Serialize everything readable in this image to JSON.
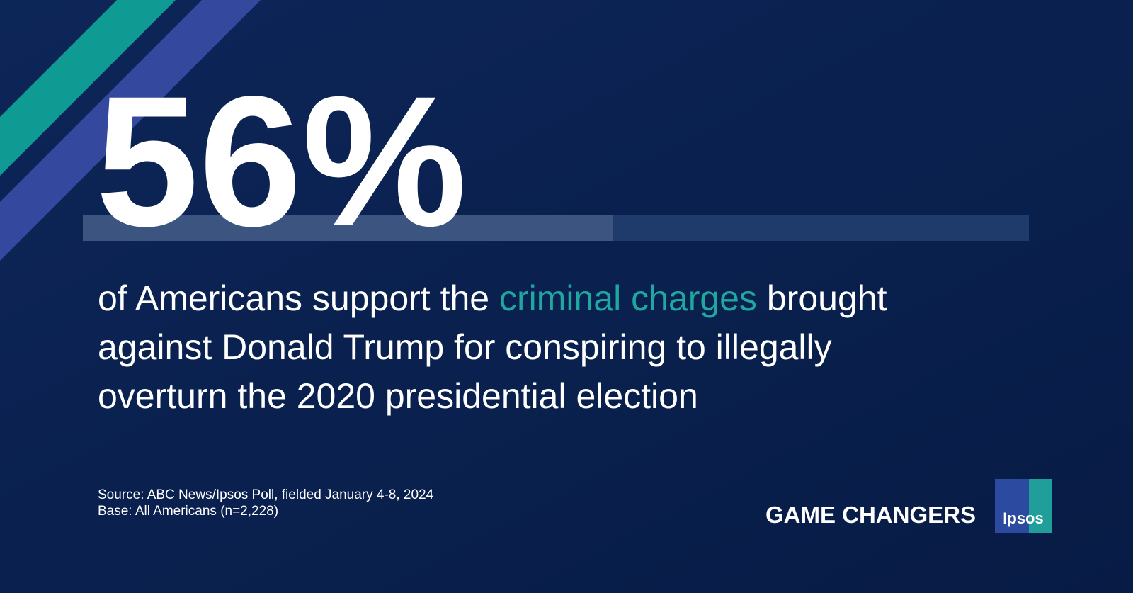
{
  "stat": {
    "value": 56,
    "label": "56%"
  },
  "statement": {
    "lines": [
      [
        "of Americans support the ",
        "criminal charges",
        " brought"
      ],
      [
        "against Donald Trump for conspiring to illegally"
      ],
      [
        "overturn the 2020 presidential election"
      ]
    ]
  },
  "footnotes": [
    "Source: ABC News/Ipsos Poll, fielded January 4-8, 2024",
    "Base: All Americans (n=2,228)"
  ],
  "brand": {
    "tagline": "GAME CHANGERS",
    "logo": "Ipsos"
  }
}
